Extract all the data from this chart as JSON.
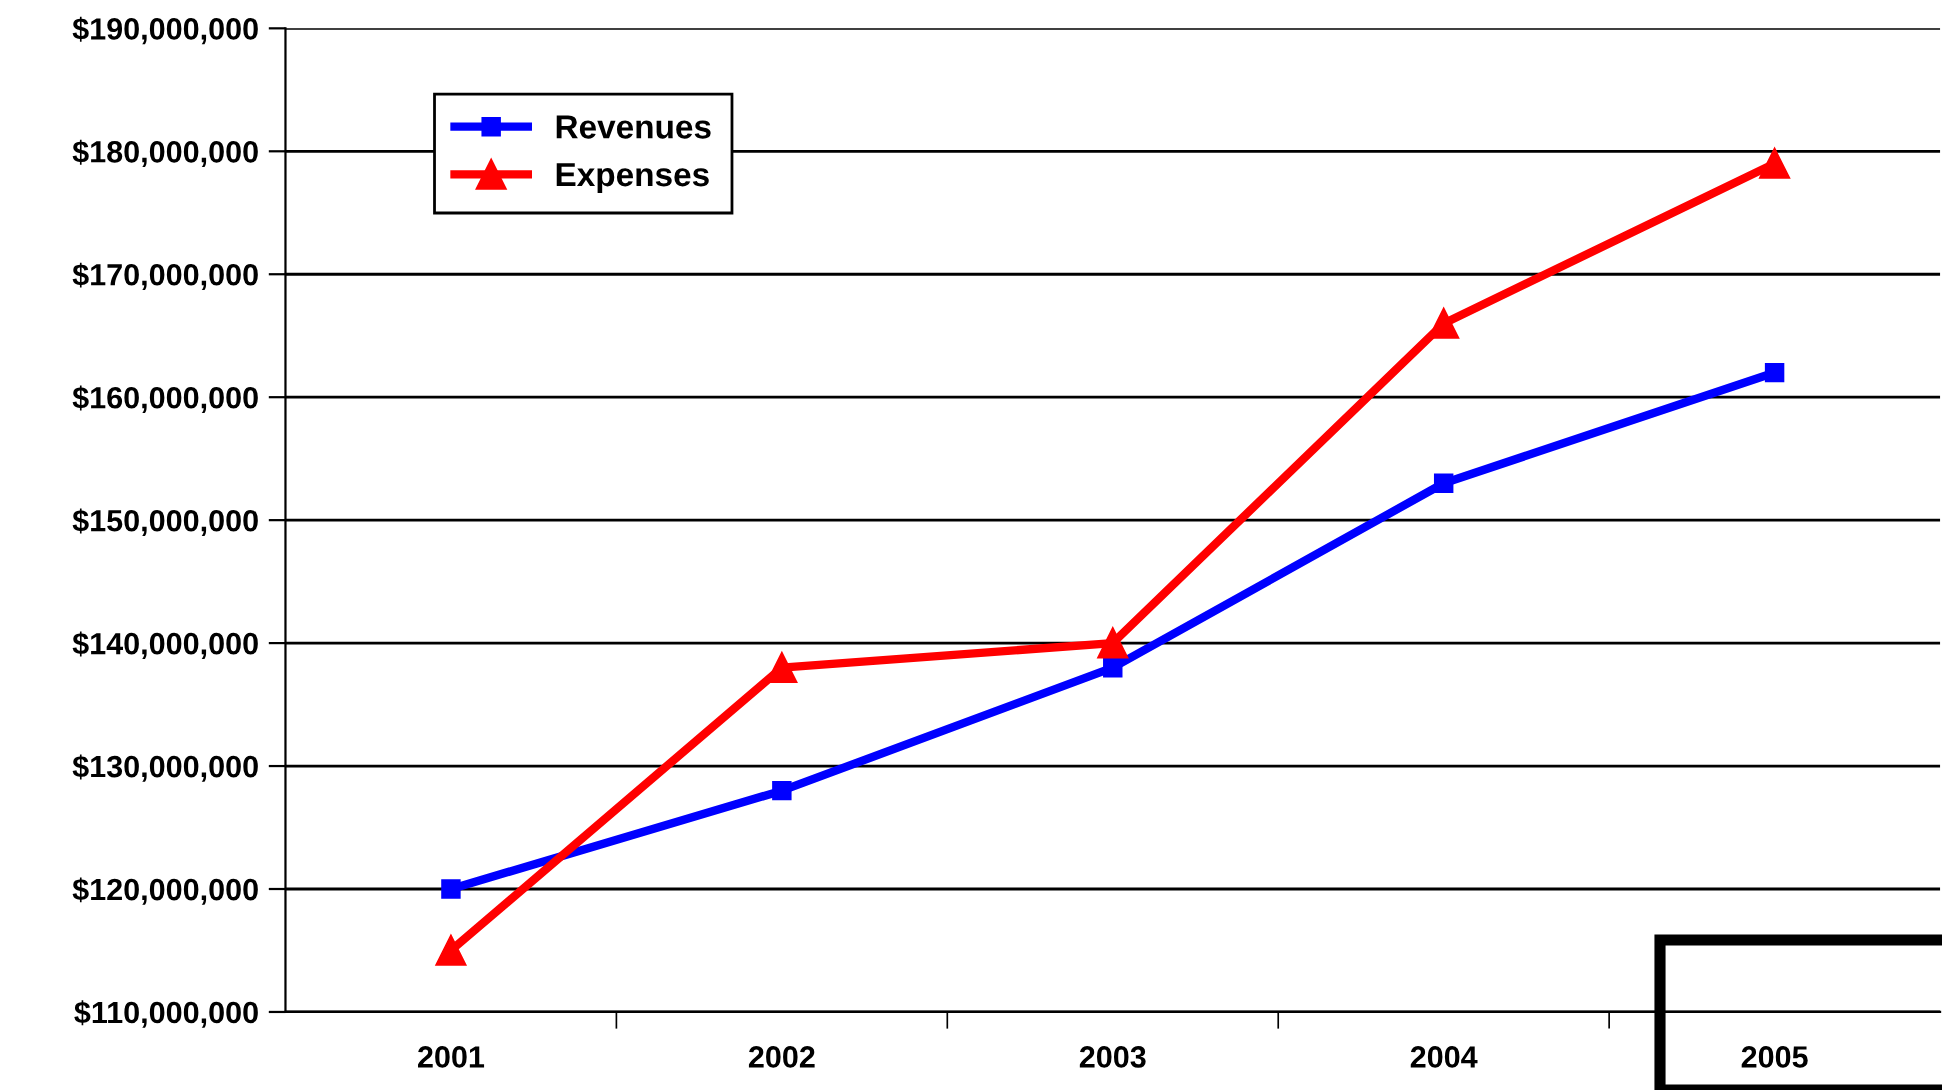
{
  "chart_data": {
    "type": "line",
    "categories": [
      "2001",
      "2002",
      "2003",
      "2004",
      "2005"
    ],
    "series": [
      {
        "name": "Revenues",
        "color": "#0000ff",
        "marker": "square",
        "values": [
          120000000,
          128000000,
          138000000,
          153000000,
          162000000
        ]
      },
      {
        "name": "Expenses",
        "color": "#ff0000",
        "marker": "triangle",
        "values": [
          115000000,
          138000000,
          140000000,
          166000000,
          179000000
        ]
      }
    ],
    "ylim": [
      110000000,
      190000000
    ],
    "yticks": [
      {
        "value": 110000000,
        "label": "$110,000,000"
      },
      {
        "value": 120000000,
        "label": "$120,000,000"
      },
      {
        "value": 130000000,
        "label": "$130,000,000"
      },
      {
        "value": 140000000,
        "label": "$140,000,000"
      },
      {
        "value": 150000000,
        "label": "$150,000,000"
      },
      {
        "value": 160000000,
        "label": "$160,000,000"
      },
      {
        "value": 170000000,
        "label": "$170,000,000"
      },
      {
        "value": 180000000,
        "label": "$180,000,000"
      },
      {
        "value": 190000000,
        "label": "$190,000,000"
      }
    ],
    "grid": "y",
    "legend": "top left",
    "line_style": "solid"
  }
}
